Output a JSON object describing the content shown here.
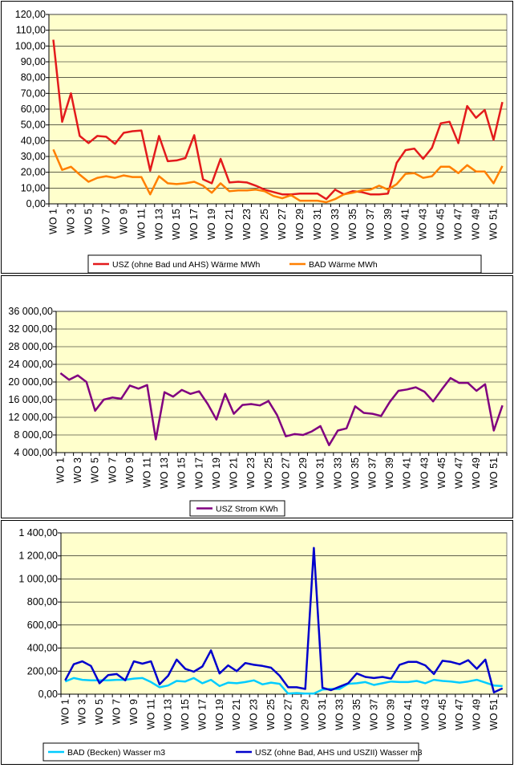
{
  "chart_data": [
    {
      "type": "line",
      "title": "",
      "xlabel": "",
      "ylabel": "",
      "ylim": [
        0,
        120
      ],
      "ytick_step": 10,
      "ytick_labels": [
        "0,00",
        "10,00",
        "20,00",
        "30,00",
        "40,00",
        "50,00",
        "60,00",
        "70,00",
        "80,00",
        "90,00",
        "100,00",
        "110,00",
        "120,00"
      ],
      "plot_bg": "#ffffcc",
      "grid": true,
      "legend_position": "bottom",
      "x_tick_labels": [
        "WO 1",
        "WO 3",
        "WO 5",
        "WO 7",
        "WO 9",
        "WO 11",
        "WO 13",
        "WO 15",
        "WO 17",
        "WO 19",
        "WO 21",
        "WO 23",
        "WO 25",
        "WO 27",
        "WO 29",
        "WO 31",
        "WO 33",
        "WO 35",
        "WO 37",
        "WO 39",
        "WO 41",
        "WO 43",
        "WO 45",
        "WO 47",
        "WO 49",
        "WO 51"
      ],
      "series": [
        {
          "name": "USZ (ohne Bad und AHS) Wärme  MWh",
          "color": "#e31a1c",
          "values": [
            104,
            52,
            70,
            43,
            38.5,
            43,
            42.5,
            38,
            45,
            46,
            46.5,
            21,
            43,
            27,
            27.5,
            29,
            43.5,
            15.5,
            13,
            28.5,
            13.5,
            14,
            13.5,
            11.5,
            9,
            7.5,
            6,
            6,
            6.5,
            6.5,
            6.5,
            3,
            9,
            6,
            8,
            7.5,
            6,
            6,
            6.5,
            26,
            34,
            35,
            28.5,
            35.5,
            51,
            52,
            38.5,
            62,
            54.5,
            59.5,
            40.5,
            64.5
          ]
        },
        {
          "name": "BAD Wärme  MWh",
          "color": "#ff7f00",
          "values": [
            34.5,
            21.5,
            23.5,
            18.5,
            14,
            16.5,
            17.5,
            16.5,
            18,
            17,
            17,
            6,
            17.5,
            13,
            12.5,
            13,
            14,
            11.5,
            7,
            13,
            8,
            8.5,
            8.5,
            9,
            8,
            5,
            3.5,
            5.5,
            2,
            2,
            2,
            1,
            3,
            6,
            7,
            8.5,
            9,
            11.5,
            9,
            12.5,
            19,
            19.5,
            16.5,
            17.5,
            23.5,
            23.5,
            19.5,
            24.5,
            20.5,
            20.5,
            13,
            24
          ]
        }
      ]
    },
    {
      "type": "line",
      "title": "",
      "xlabel": "",
      "ylabel": "",
      "ylim": [
        4000,
        36000
      ],
      "ytick_step": 4000,
      "ytick_labels": [
        "4 000,00",
        "8 000,00",
        "12 000,00",
        "16 000,00",
        "20 000,00",
        "24 000,00",
        "28 000,00",
        "32 000,00",
        "36 000,00"
      ],
      "plot_bg": "#ffffcc",
      "grid": true,
      "legend_position": "bottom",
      "x_tick_labels": [
        "WO 1",
        "WO 3",
        "WO 5",
        "WO 7",
        "WO 9",
        "WO 11",
        "WO 13",
        "WO 15",
        "WO 17",
        "WO 19",
        "WO 21",
        "WO 23",
        "WO 25",
        "WO 27",
        "WO 29",
        "WO 31",
        "WO 33",
        "WO 35",
        "WO 37",
        "WO 39",
        "WO 41",
        "WO 43",
        "WO 45",
        "WO 47",
        "WO 49",
        "WO 51"
      ],
      "series": [
        {
          "name": "USZ Strom  KWh",
          "color": "#800080",
          "values": [
            22000,
            20500,
            21500,
            20000,
            13500,
            16000,
            16500,
            16200,
            19200,
            18500,
            19300,
            7000,
            17700,
            16700,
            18200,
            17300,
            17900,
            15000,
            11500,
            17300,
            12800,
            14800,
            15000,
            14700,
            15700,
            12500,
            7700,
            8200,
            8000,
            8800,
            10000,
            5700,
            9000,
            9500,
            14500,
            13000,
            12800,
            12300,
            15500,
            18000,
            18300,
            18800,
            17800,
            15600,
            18300,
            20900,
            19800,
            19800,
            18000,
            19500,
            9000,
            14700
          ]
        }
      ]
    },
    {
      "type": "line",
      "title": "",
      "xlabel": "",
      "ylabel": "",
      "ylim": [
        0,
        1400
      ],
      "ytick_step": 200,
      "ytick_labels": [
        "0,00",
        "200,00",
        "400,00",
        "600,00",
        "800,00",
        "1 000,00",
        "1 200,00",
        "1 400,00"
      ],
      "plot_bg": "#ffffcc",
      "grid": true,
      "legend_position": "bottom",
      "x_tick_labels": [
        "WO 1",
        "WO 3",
        "WO 5",
        "WO 7",
        "WO 9",
        "WO 11",
        "WO 13",
        "WO 15",
        "WO 17",
        "WO 19",
        "WO 21",
        "WO 23",
        "WO 25",
        "WO 27",
        "WO 29",
        "WO 31",
        "WO 33",
        "WO 35",
        "WO 37",
        "WO 39",
        "WO 41",
        "WO 43",
        "WO 45",
        "WO 47",
        "WO 49",
        "WO 51"
      ],
      "series": [
        {
          "name": "BAD (Becken)            Wasser m3",
          "color": "#00ccff",
          "values": [
            110,
            140,
            125,
            120,
            120,
            120,
            125,
            125,
            135,
            140,
            105,
            60,
            75,
            115,
            110,
            140,
            95,
            125,
            70,
            100,
            95,
            105,
            120,
            85,
            100,
            90,
            5,
            10,
            5,
            5,
            40,
            45,
            45,
            90,
            95,
            105,
            80,
            95,
            110,
            105,
            105,
            115,
            95,
            125,
            115,
            110,
            100,
            110,
            125,
            100,
            75,
            70
          ]
        },
        {
          "name": "USZ (ohne Bad, AHS und USZII) Wasser  m3",
          "color": "#0000cc",
          "values": [
            120,
            260,
            285,
            245,
            95,
            165,
            175,
            120,
            285,
            265,
            285,
            85,
            160,
            300,
            220,
            195,
            240,
            380,
            180,
            250,
            200,
            270,
            255,
            245,
            230,
            160,
            60,
            60,
            45,
            1270,
            55,
            35,
            65,
            95,
            180,
            150,
            140,
            150,
            135,
            255,
            280,
            280,
            250,
            175,
            290,
            280,
            260,
            295,
            220,
            300,
            15,
            50
          ]
        }
      ]
    }
  ]
}
